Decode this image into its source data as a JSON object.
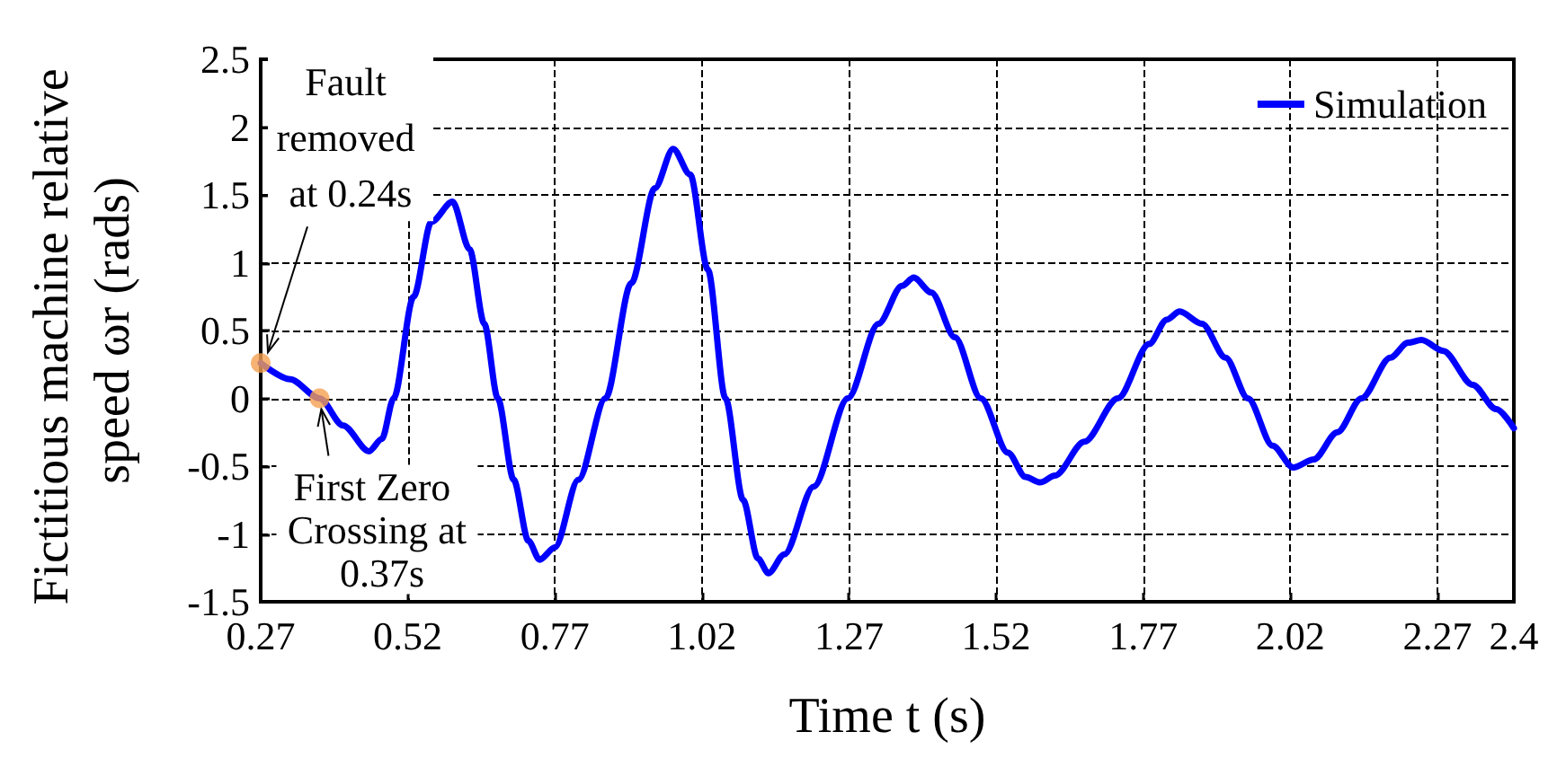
{
  "chart_data": {
    "type": "line",
    "xlabel": "Time t (s)",
    "ylabel": "Fictitious machine relative speed ωr (rads)",
    "xlim": [
      0.27,
      2.4
    ],
    "xticks": [
      0.27,
      0.52,
      0.77,
      1.02,
      1.27,
      1.52,
      1.77,
      2.02,
      2.27,
      2.4
    ],
    "ylim": [
      -1.5,
      2.5
    ],
    "yticks": [
      -1.5,
      -1,
      -0.5,
      0,
      0.5,
      1,
      1.5,
      2,
      2.5
    ],
    "grid": true,
    "legend": "top right",
    "series": [
      {
        "name": "Simulation",
        "color": "#0000ff",
        "marker": "none",
        "line_style": "solid",
        "x": [
          0.27,
          0.32,
          0.37,
          0.41,
          0.454,
          0.476,
          0.496,
          0.53,
          0.56,
          0.596,
          0.625,
          0.65,
          0.673,
          0.7,
          0.725,
          0.744,
          0.77,
          0.81,
          0.856,
          0.9,
          0.94,
          0.971,
          1.0,
          1.03,
          1.06,
          1.09,
          1.115,
          1.133,
          1.16,
          1.21,
          1.268,
          1.32,
          1.36,
          1.38,
          1.41,
          1.45,
          1.494,
          1.54,
          1.57,
          1.595,
          1.62,
          1.67,
          1.727,
          1.78,
          1.81,
          1.832,
          1.87,
          1.91,
          1.948,
          1.99,
          2.025,
          2.06,
          2.1,
          2.141,
          2.19,
          2.22,
          2.243,
          2.28,
          2.33,
          2.37,
          2.4
        ],
        "values": [
          0.26,
          0.14,
          0.0,
          -0.2,
          -0.39,
          -0.3,
          0.0,
          0.75,
          1.3,
          1.45,
          1.1,
          0.55,
          0.0,
          -0.6,
          -1.05,
          -1.19,
          -1.1,
          -0.6,
          0.0,
          0.85,
          1.55,
          1.84,
          1.65,
          0.95,
          0.0,
          -0.75,
          -1.18,
          -1.29,
          -1.15,
          -0.65,
          0.0,
          0.55,
          0.83,
          0.89,
          0.78,
          0.45,
          0.0,
          -0.4,
          -0.58,
          -0.62,
          -0.57,
          -0.32,
          0.0,
          0.4,
          0.58,
          0.64,
          0.55,
          0.3,
          0.0,
          -0.35,
          -0.51,
          -0.45,
          -0.25,
          0.0,
          0.3,
          0.41,
          0.43,
          0.35,
          0.1,
          -0.08,
          -0.22
        ]
      },
      {
        "type": "scatter",
        "color": "#f5a050",
        "marker": "circle",
        "x": [
          0.27,
          0.37
        ],
        "values": [
          0.26,
          0.0
        ]
      }
    ],
    "annotations": [
      {
        "text": "Fault removed at 0.24s",
        "x": 0.27,
        "y": 0.26
      },
      {
        "text": "First Zero Crossing at 0.37s",
        "x": 0.37,
        "y": 0.0
      }
    ]
  }
}
